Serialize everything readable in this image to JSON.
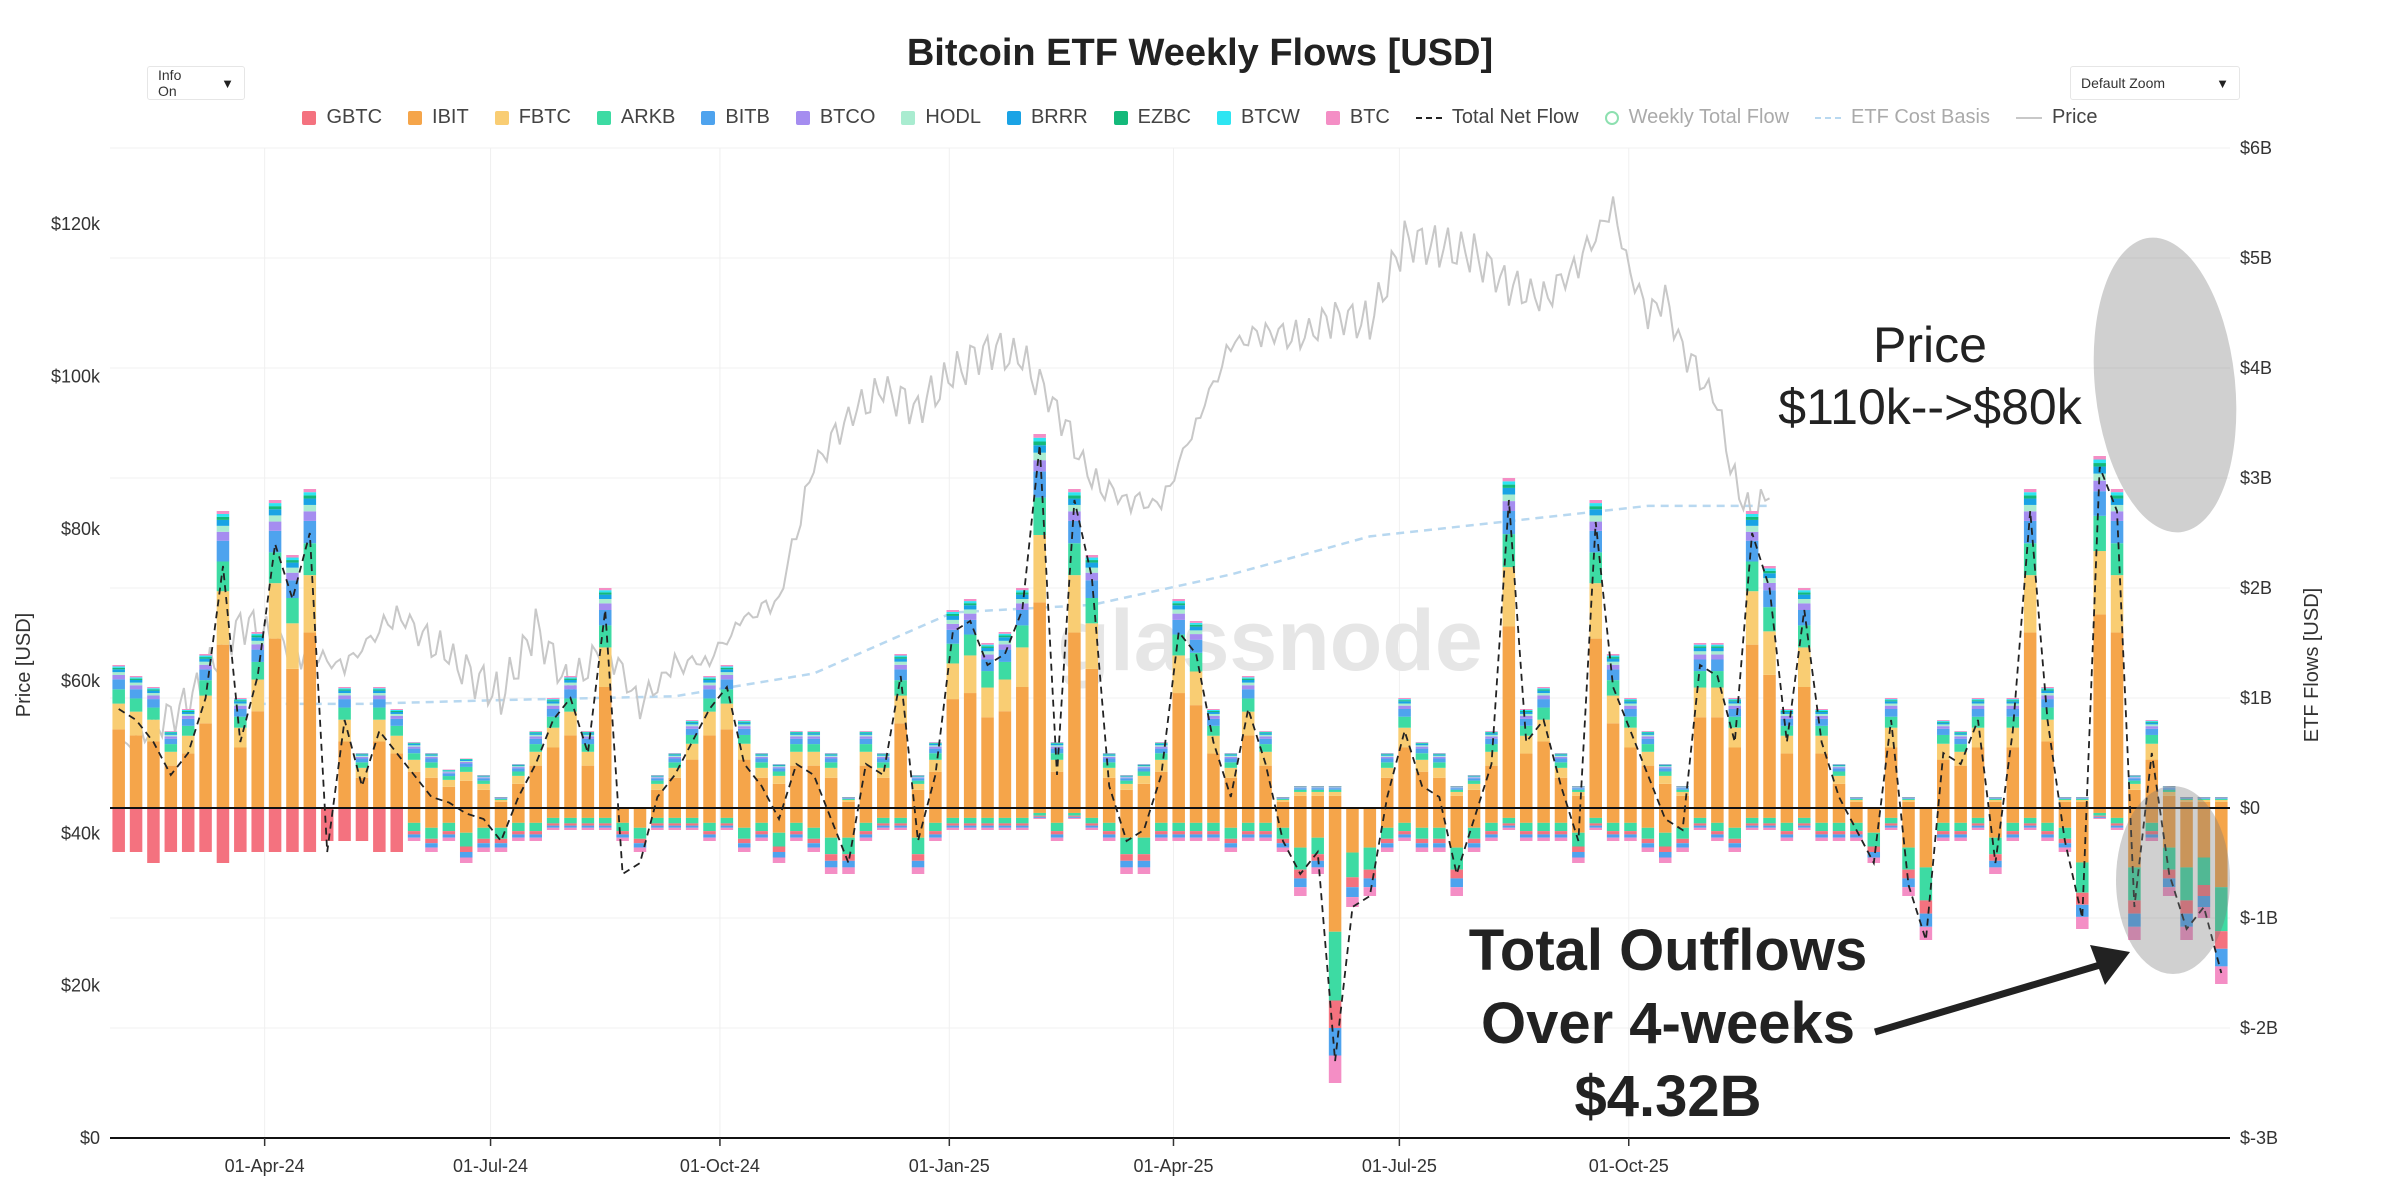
{
  "controls": {
    "info_label": "Info On",
    "zoom_label": "Default Zoom",
    "arrow": "▼"
  },
  "watermark": "glassnode",
  "legend": [
    {
      "label": "GBTC",
      "color": "#f4727f",
      "kind": "box"
    },
    {
      "label": "IBIT",
      "color": "#f5a54a",
      "kind": "box"
    },
    {
      "label": "FBTC",
      "color": "#f9cd73",
      "kind": "box"
    },
    {
      "label": "ARKB",
      "color": "#3ddba3",
      "kind": "box"
    },
    {
      "label": "BITB",
      "color": "#4ea3ee",
      "kind": "box"
    },
    {
      "label": "BTCO",
      "color": "#a58df0",
      "kind": "box"
    },
    {
      "label": "HODL",
      "color": "#a9ecd0",
      "kind": "box"
    },
    {
      "label": "BRRR",
      "color": "#1aa3e5",
      "kind": "box"
    },
    {
      "label": "EZBC",
      "color": "#14b97a",
      "kind": "box"
    },
    {
      "label": "BTCW",
      "color": "#2ee5f2",
      "kind": "box"
    },
    {
      "label": "BTC",
      "color": "#f48ec5",
      "kind": "box"
    },
    {
      "label": "Total Net Flow",
      "color": "#222222",
      "kind": "dash"
    },
    {
      "label": "Weekly Total Flow",
      "color": "#8de0b0",
      "kind": "circle"
    },
    {
      "label": "ETF Cost Basis",
      "color": "#b8d8f0",
      "kind": "light"
    },
    {
      "label": "Price",
      "color": "#c8c8c8",
      "kind": "price"
    }
  ],
  "chart_data": {
    "type": "bar",
    "title": "Bitcoin ETF Weekly Flows [USD]",
    "xlabel": "",
    "ylabel_left": "Price [USD]",
    "ylabel_right": "ETF Flows [USD]",
    "left_axis": {
      "range": [
        0,
        130000
      ],
      "ticks": [
        "$0",
        "$20k",
        "$40k",
        "$60k",
        "$80k",
        "$100k",
        "$120k"
      ],
      "tick_values": [
        0,
        20000,
        40000,
        60000,
        80000,
        100000,
        120000
      ]
    },
    "right_axis": {
      "range": [
        -3,
        6
      ],
      "ticks": [
        "$-3B",
        "$-2B",
        "$-1B",
        "$0",
        "$1B",
        "$2B",
        "$3B",
        "$4B",
        "$5B",
        "$6B"
      ],
      "tick_values": [
        -3,
        -2,
        -1,
        0,
        1,
        2,
        3,
        4,
        5,
        6
      ]
    },
    "x_ticks": [
      "01-Apr-24",
      "01-Jul-24",
      "01-Oct-24",
      "01-Jan-25",
      "01-Apr-25",
      "01-Jul-25",
      "01-Oct-25"
    ],
    "x_tick_weeks": [
      8.4,
      21.4,
      34.6,
      47.8,
      60.7,
      73.7,
      86.9
    ],
    "series_names": [
      "GBTC",
      "IBIT",
      "FBTC",
      "ARKB",
      "BITB",
      "BTCO",
      "HODL",
      "BRRR",
      "EZBC",
      "BTCW",
      "BTC"
    ],
    "series_colors": [
      "#f4727f",
      "#f5a54a",
      "#f9cd73",
      "#3ddba3",
      "#4ea3ee",
      "#a58df0",
      "#a9ecd0",
      "#1aa3e5",
      "#14b97a",
      "#2ee5f2",
      "#f48ec5"
    ],
    "weekly_net_flow_B": [
      0.9,
      0.8,
      0.6,
      0.3,
      0.5,
      1.0,
      2.2,
      0.6,
      1.2,
      2.4,
      1.9,
      2.5,
      -0.4,
      0.8,
      0.2,
      0.7,
      0.5,
      0.3,
      0.1,
      0.05,
      -0.05,
      -0.1,
      -0.3,
      0.1,
      0.4,
      0.8,
      1.0,
      0.5,
      1.8,
      -0.6,
      -0.5,
      0.1,
      0.3,
      0.6,
      0.9,
      1.1,
      0.4,
      0.2,
      -0.1,
      0.4,
      0.3,
      -0.1,
      -0.5,
      0.4,
      0.3,
      1.2,
      -0.3,
      0.3,
      1.6,
      1.7,
      1.3,
      1.4,
      1.8,
      3.3,
      0.3,
      2.8,
      2.1,
      0.2,
      -0.3,
      -0.2,
      0.3,
      1.6,
      1.4,
      0.6,
      0.1,
      0.9,
      0.4,
      -0.3,
      -0.6,
      -0.4,
      -2.3,
      -0.9,
      -0.8,
      0.1,
      0.7,
      0.2,
      0.1,
      -0.6,
      -0.1,
      0.4,
      2.8,
      0.6,
      0.8,
      0.2,
      -0.3,
      2.6,
      1.1,
      0.7,
      0.3,
      -0.1,
      -0.2,
      1.3,
      1.2,
      0.6,
      2.5,
      2.0,
      0.6,
      1.8,
      0.6,
      0.1,
      -0.2,
      -0.5,
      0.8,
      -0.7,
      -1.2,
      0.5,
      0.4,
      0.8,
      -0.5,
      0.7,
      2.7,
      0.8,
      -0.3,
      -1.0,
      3.1,
      2.7,
      -0.9,
      0.5,
      -0.6,
      -1.1,
      -0.9,
      -1.5
    ],
    "weekly_outflow_B": [
      -0.4,
      -0.4,
      -0.5,
      -0.4,
      -0.4,
      -0.4,
      -0.5,
      -0.4,
      -0.4,
      -0.4,
      -0.4,
      -0.4,
      -0.3,
      -0.3,
      -0.3,
      -0.4,
      -0.4,
      -0.3,
      -0.4,
      -0.3,
      -0.5,
      -0.4,
      -0.4,
      -0.3,
      -0.3,
      -0.2,
      -0.2,
      -0.2,
      -0.2,
      -0.3,
      -0.4,
      -0.2,
      -0.2,
      -0.2,
      -0.3,
      -0.2,
      -0.4,
      -0.3,
      -0.5,
      -0.3,
      -0.4,
      -0.6,
      -0.6,
      -0.3,
      -0.2,
      -0.2,
      -0.6,
      -0.3,
      -0.2,
      -0.2,
      -0.2,
      -0.2,
      -0.2,
      -0.1,
      -0.3,
      -0.1,
      -0.2,
      -0.3,
      -0.6,
      -0.6,
      -0.3,
      -0.3,
      -0.3,
      -0.3,
      -0.4,
      -0.3,
      -0.3,
      -0.4,
      -0.8,
      -0.6,
      -2.5,
      -0.9,
      -0.8,
      -0.4,
      -0.3,
      -0.4,
      -0.4,
      -0.8,
      -0.4,
      -0.3,
      -0.2,
      -0.3,
      -0.3,
      -0.3,
      -0.5,
      -0.2,
      -0.3,
      -0.3,
      -0.4,
      -0.5,
      -0.4,
      -0.2,
      -0.3,
      -0.4,
      -0.2,
      -0.2,
      -0.3,
      -0.2,
      -0.3,
      -0.3,
      -0.3,
      -0.5,
      -0.2,
      -0.8,
      -1.2,
      -0.3,
      -0.3,
      -0.2,
      -0.6,
      -0.3,
      -0.2,
      -0.3,
      -0.4,
      -1.1,
      -0.1,
      -0.2,
      -1.2,
      -0.3,
      -0.8,
      -1.2,
      -1.0,
      -1.6
    ],
    "price_usd": [
      {
        "w": 0,
        "p": 51000
      },
      {
        "w": 4,
        "p": 57000
      },
      {
        "w": 7,
        "p": 68000
      },
      {
        "w": 10,
        "p": 64000
      },
      {
        "w": 13,
        "p": 62000
      },
      {
        "w": 16,
        "p": 69000
      },
      {
        "w": 19,
        "p": 63000
      },
      {
        "w": 22,
        "p": 58000
      },
      {
        "w": 24,
        "p": 67000
      },
      {
        "w": 26,
        "p": 59000
      },
      {
        "w": 28,
        "p": 65000
      },
      {
        "w": 30,
        "p": 57000
      },
      {
        "w": 32,
        "p": 62000
      },
      {
        "w": 34,
        "p": 63000
      },
      {
        "w": 36,
        "p": 68000
      },
      {
        "w": 38,
        "p": 71000
      },
      {
        "w": 40,
        "p": 88000
      },
      {
        "w": 42,
        "p": 95000
      },
      {
        "w": 44,
        "p": 98000
      },
      {
        "w": 46,
        "p": 96000
      },
      {
        "w": 48,
        "p": 100000
      },
      {
        "w": 50,
        "p": 104000
      },
      {
        "w": 52,
        "p": 102000
      },
      {
        "w": 54,
        "p": 96000
      },
      {
        "w": 56,
        "p": 86000
      },
      {
        "w": 58,
        "p": 84000
      },
      {
        "w": 60,
        "p": 83000
      },
      {
        "w": 62,
        "p": 94000
      },
      {
        "w": 64,
        "p": 104000
      },
      {
        "w": 66,
        "p": 106000
      },
      {
        "w": 68,
        "p": 105000
      },
      {
        "w": 70,
        "p": 108000
      },
      {
        "w": 72,
        "p": 107000
      },
      {
        "w": 74,
        "p": 118000
      },
      {
        "w": 76,
        "p": 117000
      },
      {
        "w": 78,
        "p": 116000
      },
      {
        "w": 80,
        "p": 112000
      },
      {
        "w": 82,
        "p": 110000
      },
      {
        "w": 84,
        "p": 115000
      },
      {
        "w": 86,
        "p": 122000
      },
      {
        "w": 87,
        "p": 114000
      },
      {
        "w": 88,
        "p": 108000
      },
      {
        "w": 89,
        "p": 110000
      },
      {
        "w": 90,
        "p": 104000
      },
      {
        "w": 92,
        "p": 96000
      },
      {
        "w": 93,
        "p": 86000
      },
      {
        "w": 94,
        "p": 82000
      },
      {
        "w": 95,
        "p": 84000
      }
    ],
    "etf_cost_basis_usd": [
      {
        "w": 8,
        "p": 57000
      },
      {
        "w": 14,
        "p": 57000
      },
      {
        "w": 22,
        "p": 57500
      },
      {
        "w": 32,
        "p": 58000
      },
      {
        "w": 40,
        "p": 61000
      },
      {
        "w": 48,
        "p": 69000
      },
      {
        "w": 56,
        "p": 70000
      },
      {
        "w": 64,
        "p": 74000
      },
      {
        "w": 72,
        "p": 79000
      },
      {
        "w": 80,
        "p": 81000
      },
      {
        "w": 88,
        "p": 83000
      },
      {
        "w": 95,
        "p": 83000
      }
    ],
    "annotations": [
      {
        "id": "price-note-line1",
        "text": "Price"
      },
      {
        "id": "price-note-line2",
        "text": "$110k-->$80k"
      },
      {
        "id": "outflows-line1",
        "text": "Total Outflows"
      },
      {
        "id": "outflows-line2",
        "text": "Over 4-weeks"
      },
      {
        "id": "outflows-line3",
        "text": "$4.32B"
      }
    ]
  }
}
